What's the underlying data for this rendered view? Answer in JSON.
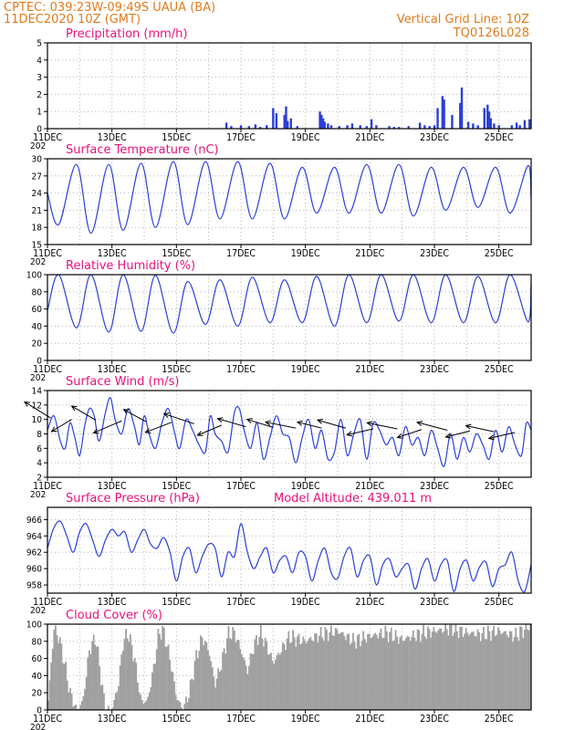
{
  "header": {
    "line1": "CPTEC:  039:23W-09:49S  UAUA (BA)",
    "line2": "11DEC2020 10Z (GMT)",
    "grid_note": "Vertical Grid Line: 10Z",
    "code": "TQ0126L028"
  },
  "colors": {
    "header": "#e07a1c",
    "title": "#e6127a",
    "series": "#2b3fd6",
    "cloud": "#a0a0a0",
    "grid": "#b4b4b4"
  },
  "x_axis": {
    "start_day": 11,
    "end_day": 26,
    "tick_days": [
      11,
      13,
      15,
      17,
      19,
      21,
      23,
      25
    ],
    "tick_labels": [
      "11DEC",
      "13DEC",
      "15DEC",
      "17DEC",
      "19DEC",
      "21DEC",
      "23DEC",
      "25DEC"
    ],
    "grid_days": [
      12,
      13,
      14,
      15,
      16,
      17,
      18,
      19,
      20,
      21,
      22,
      23,
      24,
      25
    ],
    "year_fragment": "202"
  },
  "chart_data": [
    {
      "type": "bar",
      "title": "Precipitation (mm/h)",
      "ylim": [
        0,
        5
      ],
      "yticks": [
        0,
        1,
        2,
        3,
        4,
        5
      ],
      "x": [
        16.55,
        16.7,
        17.0,
        17.25,
        17.45,
        17.6,
        17.8,
        18.0,
        18.1,
        18.35,
        18.4,
        18.45,
        18.55,
        18.75,
        19.45,
        19.5,
        19.55,
        19.6,
        19.7,
        19.8,
        20.05,
        20.3,
        20.45,
        20.7,
        20.9,
        21.05,
        21.2,
        21.6,
        21.75,
        21.9,
        22.2,
        22.55,
        22.7,
        22.85,
        23.0,
        23.1,
        23.25,
        23.3,
        23.55,
        23.8,
        23.85,
        24.05,
        24.2,
        24.35,
        24.55,
        24.65,
        24.7,
        24.75,
        24.85,
        25.0,
        25.4,
        25.55,
        25.65,
        25.8,
        25.95
      ],
      "values": [
        0.35,
        0.15,
        0.2,
        0.15,
        0.25,
        0.1,
        0.2,
        1.2,
        0.9,
        0.8,
        1.3,
        0.45,
        0.6,
        0.15,
        1.0,
        0.8,
        0.6,
        0.4,
        0.3,
        0.2,
        0.15,
        0.2,
        0.3,
        0.2,
        0.15,
        0.55,
        0.2,
        0.15,
        0.1,
        0.1,
        0.15,
        0.35,
        0.2,
        0.15,
        0.2,
        1.2,
        1.9,
        1.7,
        0.8,
        1.5,
        2.4,
        0.4,
        0.3,
        0.2,
        1.2,
        1.4,
        1.0,
        0.6,
        0.3,
        0.2,
        0.2,
        0.35,
        0.2,
        0.5,
        0.55
      ]
    },
    {
      "type": "line",
      "title": "Surface Temperature (nC)",
      "ylim": [
        15,
        30
      ],
      "yticks": [
        15,
        18,
        21,
        24,
        27,
        30
      ],
      "series": [
        {
          "name": "",
          "min_at": 11.35,
          "minima": [
            18.5,
            17.0,
            17.5,
            18.0,
            18.5,
            19.5,
            19.5,
            19.5,
            20.5,
            20.5,
            20.5,
            20.0,
            21.0,
            21.5,
            20.5,
            20.0
          ],
          "maxima": [
            29.0,
            29.0,
            29.2,
            29.5,
            29.5,
            29.5,
            29.2,
            28.5,
            28.5,
            29.0,
            29.0,
            28.5,
            28.5,
            28.5,
            28.8,
            29.0
          ],
          "start": 24.0,
          "end": 23.0
        }
      ]
    },
    {
      "type": "line",
      "title": "Relative Humidity (%)",
      "ylim": [
        0,
        100
      ],
      "yticks": [
        0,
        20,
        40,
        60,
        80,
        100
      ],
      "series": [
        {
          "name": "",
          "peak_at": 11.35,
          "minima": [
            38,
            33,
            34,
            32,
            42,
            40,
            44,
            44,
            40,
            44,
            46,
            44,
            44,
            44,
            45,
            42
          ],
          "maxima": [
            100,
            100,
            100,
            99,
            92,
            94,
            97,
            94,
            98,
            100,
            100,
            100,
            100,
            98,
            100,
            97
          ],
          "start": 58,
          "end": 90
        }
      ]
    },
    {
      "type": "line",
      "title": "Surface Wind (m/s)",
      "ylim": [
        2,
        14
      ],
      "yticks": [
        2,
        4,
        6,
        8,
        10,
        12,
        14
      ],
      "series": [
        {
          "name": "",
          "x": [
            11.0,
            11.2,
            11.4,
            11.55,
            11.7,
            11.85,
            12.0,
            12.15,
            12.3,
            12.45,
            12.6,
            12.8,
            12.95,
            13.1,
            13.3,
            13.5,
            13.7,
            13.85,
            14.0,
            14.15,
            14.35,
            14.55,
            14.75,
            14.95,
            15.1,
            15.3,
            15.5,
            15.7,
            15.9,
            16.05,
            16.2,
            16.4,
            16.6,
            16.8,
            16.95,
            17.1,
            17.3,
            17.5,
            17.7,
            17.9,
            18.1,
            18.3,
            18.5,
            18.7,
            18.9,
            19.1,
            19.3,
            19.5,
            19.7,
            19.9,
            20.1,
            20.3,
            20.5,
            20.7,
            20.9,
            21.1,
            21.3,
            21.5,
            21.7,
            21.9,
            22.1,
            22.3,
            22.5,
            22.7,
            22.9,
            23.1,
            23.3,
            23.5,
            23.7,
            23.9,
            24.1,
            24.3,
            24.5,
            24.7,
            24.9,
            25.1,
            25.3,
            25.5,
            25.7,
            25.85,
            26.0
          ],
          "y": [
            8.5,
            10.5,
            7.0,
            6.0,
            9.5,
            7.5,
            5.0,
            9.0,
            11.5,
            10.5,
            7.0,
            11.0,
            13.0,
            10.0,
            8.0,
            11.5,
            9.0,
            6.5,
            10.5,
            8.0,
            6.0,
            9.5,
            11.5,
            8.0,
            6.0,
            10.0,
            8.5,
            6.5,
            5.5,
            10.5,
            8.0,
            7.0,
            5.5,
            11.0,
            11.5,
            8.5,
            6.0,
            9.5,
            4.5,
            7.5,
            10.5,
            8.0,
            7.5,
            4.0,
            7.5,
            10.0,
            6.0,
            8.5,
            4.5,
            5.5,
            10.0,
            5.0,
            8.0,
            10.0,
            4.5,
            9.5,
            8.5,
            6.5,
            7.5,
            5.0,
            9.0,
            6.5,
            7.5,
            5.0,
            8.5,
            6.0,
            3.5,
            8.0,
            4.5,
            7.5,
            5.5,
            8.0,
            6.5,
            4.5,
            8.5,
            5.5,
            9.0,
            6.5,
            5.0,
            9.5,
            8.5
          ]
        }
      ],
      "wind_vectors": {
        "x": [
          11.1,
          11.75,
          12.5,
          13.3,
          14.05,
          14.85,
          15.55,
          16.4,
          17.15,
          18.0,
          18.7,
          19.5,
          20.25,
          21.1,
          21.85,
          22.6,
          23.4,
          24.1,
          24.85,
          25.5
        ],
        "y": [
          10.2,
          10.0,
          9.9,
          9.8,
          9.7,
          9.6,
          9.4,
          9.2,
          9.0,
          8.9,
          8.8,
          8.8,
          8.8,
          8.7,
          8.7,
          8.6,
          8.5,
          8.4,
          8.3,
          8.2
        ],
        "u": [
          -1.3,
          -1.0,
          -1.2,
          -1.4,
          -1.1,
          -1.3,
          -1.5,
          -1.2,
          -1.4,
          -1.3,
          -1.5,
          -1.2,
          -1.4,
          -1.3,
          -1.5,
          -1.2,
          -1.5,
          -1.2,
          -1.4,
          -1.3
        ],
        "v": [
          0.8,
          -0.6,
          0.7,
          -0.6,
          0.6,
          -0.5,
          0.5,
          -0.5,
          0.4,
          0.4,
          0.3,
          0.3,
          0.4,
          -0.3,
          0.3,
          -0.4,
          0.4,
          -0.3,
          0.3,
          -0.3
        ]
      }
    },
    {
      "type": "line",
      "title": "Surface Pressure (hPa)",
      "annotation": "Model Altitude: 439.011 m",
      "ylim": [
        957,
        967.5
      ],
      "yticks": [
        958,
        960,
        962,
        964,
        966
      ],
      "series": [
        {
          "name": "",
          "x": [
            11.0,
            11.2,
            11.4,
            11.6,
            11.8,
            12.0,
            12.2,
            12.4,
            12.6,
            12.8,
            13.0,
            13.2,
            13.4,
            13.6,
            13.8,
            14.0,
            14.2,
            14.4,
            14.6,
            14.8,
            15.0,
            15.2,
            15.4,
            15.6,
            15.8,
            16.0,
            16.2,
            16.4,
            16.6,
            16.8,
            17.0,
            17.2,
            17.4,
            17.6,
            17.8,
            18.0,
            18.2,
            18.4,
            18.6,
            18.8,
            19.0,
            19.2,
            19.4,
            19.6,
            19.8,
            20.0,
            20.2,
            20.4,
            20.6,
            20.8,
            21.0,
            21.2,
            21.4,
            21.6,
            21.8,
            22.0,
            22.2,
            22.4,
            22.6,
            22.8,
            23.0,
            23.2,
            23.4,
            23.6,
            23.8,
            24.0,
            24.2,
            24.4,
            24.6,
            24.8,
            25.0,
            25.2,
            25.4,
            25.6,
            25.8,
            26.0
          ],
          "y": [
            962.5,
            965.0,
            965.8,
            964.0,
            962.0,
            964.5,
            965.5,
            963.5,
            961.5,
            963.5,
            964.8,
            964.0,
            964.5,
            962.0,
            963.5,
            964.8,
            963.0,
            962.5,
            963.8,
            962.0,
            958.5,
            961.5,
            962.5,
            959.5,
            961.5,
            963.0,
            962.5,
            959.0,
            962.0,
            961.5,
            965.5,
            962.0,
            960.0,
            961.5,
            962.5,
            959.5,
            961.0,
            961.5,
            959.5,
            962.0,
            961.5,
            958.5,
            961.0,
            962.5,
            959.5,
            958.8,
            961.5,
            962.5,
            959.0,
            961.0,
            961.5,
            958.0,
            960.5,
            961.2,
            959.0,
            960.0,
            960.5,
            957.5,
            960.0,
            961.2,
            958.5,
            960.5,
            961.0,
            957.2,
            960.0,
            961.0,
            958.5,
            960.2,
            960.8,
            957.8,
            960.0,
            960.5,
            962.0,
            958.5,
            957.2,
            960.5
          ]
        }
      ]
    },
    {
      "type": "bar",
      "title": "Cloud Cover (%)",
      "ylim": [
        0,
        100
      ],
      "yticks": [
        0,
        20,
        40,
        60,
        80,
        100
      ],
      "profile_x": [
        11.0,
        11.2,
        11.35,
        11.5,
        11.7,
        11.9,
        12.1,
        12.3,
        12.5,
        12.65,
        12.8,
        13.0,
        13.2,
        13.35,
        13.5,
        13.7,
        13.9,
        14.1,
        14.3,
        14.45,
        14.6,
        14.8,
        15.0,
        15.2,
        15.4,
        15.6,
        15.8,
        16.0,
        16.2,
        16.4,
        16.6,
        16.8,
        17.0,
        17.2,
        17.4,
        17.6,
        17.8,
        18.0,
        18.5,
        19.0,
        19.5,
        20.0,
        20.5,
        21.0,
        21.5,
        22.0,
        22.5,
        23.0,
        23.5,
        24.0,
        24.5,
        25.0,
        25.5,
        26.0
      ],
      "profile_y": [
        0,
        95,
        85,
        60,
        20,
        0,
        10,
        70,
        85,
        40,
        0,
        0,
        30,
        80,
        90,
        60,
        10,
        10,
        50,
        90,
        92,
        60,
        15,
        0,
        20,
        60,
        85,
        70,
        30,
        55,
        88,
        90,
        70,
        45,
        75,
        90,
        75,
        55,
        85,
        80,
        88,
        92,
        80,
        86,
        90,
        82,
        88,
        92,
        95,
        90,
        88,
        92,
        86,
        100
      ]
    }
  ]
}
